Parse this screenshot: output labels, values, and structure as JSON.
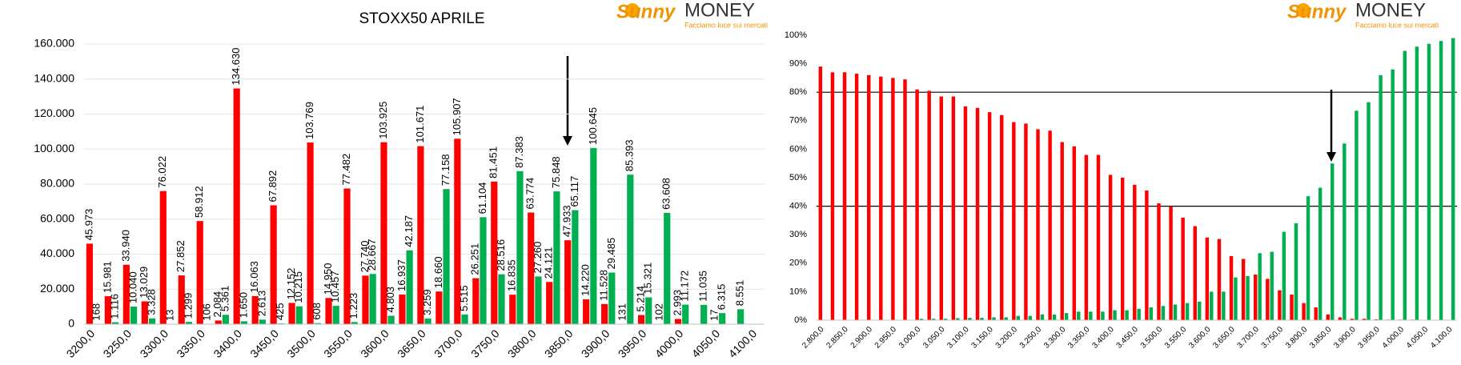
{
  "chart_data": [
    {
      "type": "bar",
      "title": "STOXX50 APRILE",
      "logo": {
        "name_a": "Sunny",
        "name_b": "MONEY",
        "tagline": "Facciamo luce sui mercati"
      },
      "categories": [
        "3200,0",
        null,
        "3250,0",
        null,
        "3300,0",
        null,
        "3350,0",
        null,
        "3400,0",
        null,
        "3450,0",
        null,
        "3500,0",
        null,
        "3550,0",
        null,
        "3600,0",
        null,
        "3650,0",
        null,
        "3700,0",
        null,
        "3750,0",
        null,
        "3800,0",
        null,
        "3850,0",
        null,
        "3900,0",
        null,
        "3950,0",
        null,
        "4000,0",
        null,
        "4050,0",
        null,
        "4100,0"
      ],
      "series": [
        {
          "color": "#ff0000",
          "values": [
            45973,
            15981,
            33940,
            13029,
            76022,
            27852,
            58912,
            2084,
            134630,
            16063,
            67892,
            12152,
            103769,
            14950,
            77482,
            27740,
            103925,
            16937,
            101671,
            18660,
            105907,
            26251,
            81451,
            16835,
            63774,
            24121,
            47933,
            14220,
            11528,
            131,
            5214,
            102,
            2993,
            null,
            17,
            null,
            null
          ],
          "value_labels": [
            "45.973",
            "15.981",
            "33.940",
            "13.029",
            "76.022",
            "27.852",
            "58.912",
            "2.084",
            "134.630",
            "16.063",
            "67.892",
            "12.152",
            "103.769",
            "14.950",
            "77.482",
            "27.740",
            "103.925",
            "16.937",
            "101.671",
            "18.660",
            "105.907",
            "26.251",
            "81.451",
            "16.835",
            "63.774",
            "24.121",
            "47.933",
            "14.220",
            "11.528",
            "131",
            "5.214",
            "102",
            "2.993",
            null,
            "17",
            null,
            null
          ]
        },
        {
          "color": "#00b050",
          "values": [
            168,
            1116,
            10040,
            3328,
            13,
            1299,
            106,
            5361,
            1650,
            2613,
            425,
            10215,
            608,
            10457,
            1223,
            28667,
            4803,
            42187,
            3259,
            77158,
            5515,
            61104,
            28516,
            87383,
            27260,
            75848,
            65117,
            100645,
            29485,
            85393,
            15321,
            63608,
            11172,
            11035,
            6315,
            8551,
            null
          ],
          "value_labels": [
            "168",
            "1.116",
            "10.040",
            "3.328",
            "13",
            "1.299",
            "106",
            "5.361",
            "1.650",
            "2.613",
            "425",
            "10.215",
            "608",
            "10.457",
            "1.223",
            "28.667",
            "4.803",
            "42.187",
            "3.259",
            "77.158",
            "5.515",
            "61.104",
            "28.516",
            "87.383",
            "27.260",
            "75.848",
            "65.117",
            "100.645",
            "29.485",
            "85.393",
            "15.321",
            "63.608",
            "11.172",
            "11.035",
            "6.315",
            "8.551",
            null
          ]
        }
      ],
      "ylim": [
        0,
        160000
      ],
      "yticks": [
        0,
        {
          "value": 20000,
          "label": "20.000"
        },
        {
          "value": 40000,
          "label": "40.000"
        },
        {
          "value": 60000,
          "label": "60.000"
        },
        {
          "value": 80000,
          "label": "80.000"
        },
        {
          "value": 100000,
          "label": "100.000"
        },
        {
          "value": 120000,
          "label": "120.000"
        },
        {
          "value": 140000,
          "label": "140.000"
        },
        {
          "value": 160000,
          "label": "160.000"
        }
      ],
      "grid": true
    },
    {
      "type": "bar",
      "logo": {
        "name_a": "Sunny",
        "name_b": "MONEY",
        "tagline": "Facciamo luce sui mercati"
      },
      "categories": [
        "2.800,0",
        null,
        "2.850,0",
        null,
        "2.900,0",
        null,
        "2.950,0",
        null,
        "3.000,0",
        null,
        "3.050,0",
        null,
        "3.100,0",
        null,
        "3.150,0",
        null,
        "3.200,0",
        null,
        "3.250,0",
        null,
        "3.300,0",
        null,
        "3.350,0",
        null,
        "3.400,0",
        null,
        "3.450,0",
        null,
        "3.500,0",
        null,
        "3.550,0",
        null,
        "3.600,0",
        null,
        "3.650,0",
        null,
        "3.700,0",
        null,
        "3.750,0",
        null,
        "3.800,0",
        null,
        "3.850,0",
        null,
        "3.900,0",
        null,
        "3.950,0",
        null,
        "4.000,0",
        null,
        "4.050,0",
        null,
        "4.100,0"
      ],
      "series": [
        {
          "color": "#ff0000",
          "values": [
            89,
            87,
            87,
            86.5,
            86,
            85.5,
            85,
            84.5,
            81,
            80.5,
            78.5,
            78.5,
            75,
            74.5,
            73,
            72,
            69.5,
            69,
            67,
            66.5,
            62.5,
            61,
            58,
            58,
            51,
            50,
            47.5,
            45.5,
            41,
            40,
            36,
            33,
            29,
            28.5,
            22.5,
            21.5,
            16,
            14.5,
            10.5,
            9,
            6,
            4.5,
            2,
            1,
            0.5,
            0.5,
            0.3,
            0.2,
            0.2,
            0.2,
            0.1,
            0.1,
            0.1
          ]
        },
        {
          "color": "#00b050",
          "values": [
            0.1,
            0.1,
            0.1,
            0.1,
            0.1,
            0.1,
            0.1,
            0.1,
            0.5,
            0.5,
            0.5,
            0.7,
            0.8,
            0.8,
            1,
            1,
            1.5,
            1.5,
            2,
            2,
            2.5,
            3,
            3,
            3,
            3.5,
            3.5,
            4,
            4.5,
            5,
            5.5,
            6,
            6.5,
            10,
            10,
            15,
            15.5,
            23.5,
            24,
            31,
            34,
            43.5,
            46.5,
            55,
            62,
            73.5,
            76.5,
            86,
            88,
            94.5,
            96,
            97,
            98,
            99
          ]
        }
      ],
      "ylim": [
        0,
        100
      ],
      "yticks": [
        {
          "value": 0,
          "label": "0%"
        },
        {
          "value": 10,
          "label": "10%"
        },
        {
          "value": 20,
          "label": "20%"
        },
        {
          "value": 30,
          "label": "30%"
        },
        {
          "value": 40,
          "label": "40%"
        },
        {
          "value": 50,
          "label": "50%"
        },
        {
          "value": 60,
          "label": "60%"
        },
        {
          "value": 70,
          "label": "70%"
        },
        {
          "value": 80,
          "label": "80%"
        },
        {
          "value": 90,
          "label": "90%"
        },
        {
          "value": 100,
          "label": "100%"
        }
      ],
      "grid": false,
      "reference_lines": [
        40,
        80
      ]
    }
  ]
}
